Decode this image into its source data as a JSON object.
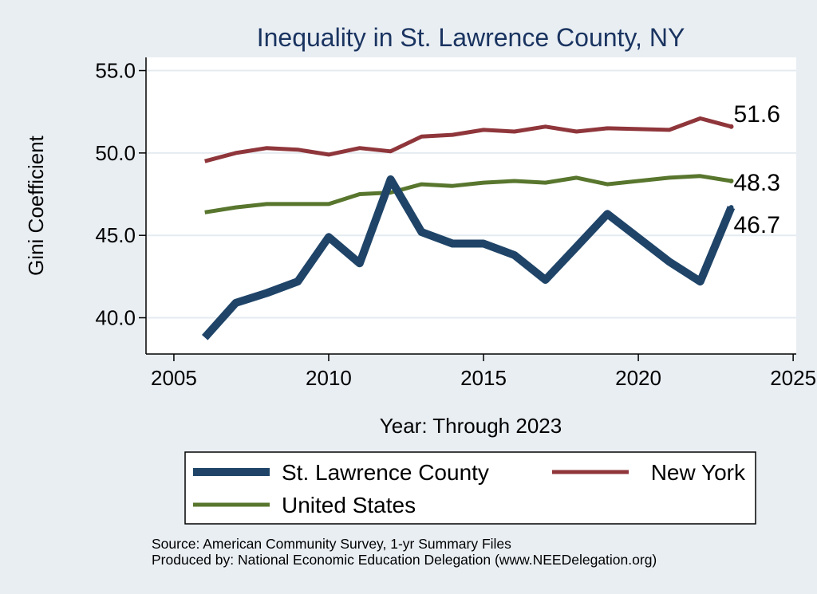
{
  "chart_data": {
    "type": "line",
    "title": "Inequality in St. Lawrence County, NY",
    "xlabel": "Year: Through 2023",
    "ylabel": "Gini Coefficient",
    "xlim": [
      2004.1,
      2025.1
    ],
    "ylim": [
      37.8,
      55.8
    ],
    "xticks": [
      2005,
      2010,
      2015,
      2020,
      2025
    ],
    "yticks": [
      40.0,
      45.0,
      50.0,
      55.0
    ],
    "xtick_labels": [
      "2005",
      "2010",
      "2015",
      "2020",
      "2025"
    ],
    "ytick_labels": [
      "40.0",
      "45.0",
      "50.0",
      "55.0"
    ],
    "grid": true,
    "legend_position": "bottom",
    "series": [
      {
        "name": "St. Lawrence County",
        "color": "#1f4468",
        "width": "thick",
        "end_label": "46.7",
        "points": [
          [
            2006,
            38.8
          ],
          [
            2007,
            40.9
          ],
          [
            2008,
            41.5
          ],
          [
            2009,
            42.2
          ],
          [
            2010,
            44.9
          ],
          [
            2011,
            43.3
          ],
          [
            2012,
            48.4
          ],
          [
            2013,
            45.2
          ],
          [
            2014,
            44.5
          ],
          [
            2015,
            44.5
          ],
          [
            2016,
            43.8
          ],
          [
            2017,
            42.3
          ],
          [
            2018,
            44.3
          ],
          [
            2019,
            46.3
          ],
          [
            2021,
            43.4
          ],
          [
            2022,
            42.2
          ],
          [
            2023,
            46.7
          ]
        ]
      },
      {
        "name": "New York",
        "color": "#8f363b",
        "width": "medium",
        "end_label": "51.6",
        "points": [
          [
            2006,
            49.5
          ],
          [
            2007,
            50.0
          ],
          [
            2008,
            50.3
          ],
          [
            2009,
            50.2
          ],
          [
            2010,
            49.9
          ],
          [
            2011,
            50.3
          ],
          [
            2012,
            50.1
          ],
          [
            2013,
            51.0
          ],
          [
            2014,
            51.1
          ],
          [
            2015,
            51.4
          ],
          [
            2016,
            51.3
          ],
          [
            2017,
            51.6
          ],
          [
            2018,
            51.3
          ],
          [
            2019,
            51.5
          ],
          [
            2021,
            51.4
          ],
          [
            2022,
            52.1
          ],
          [
            2023,
            51.6
          ]
        ]
      },
      {
        "name": "United States",
        "color": "#58762d",
        "width": "medium",
        "end_label": "48.3",
        "points": [
          [
            2006,
            46.4
          ],
          [
            2007,
            46.7
          ],
          [
            2008,
            46.9
          ],
          [
            2009,
            46.9
          ],
          [
            2010,
            46.9
          ],
          [
            2011,
            47.5
          ],
          [
            2012,
            47.6
          ],
          [
            2013,
            48.1
          ],
          [
            2014,
            48.0
          ],
          [
            2015,
            48.2
          ],
          [
            2016,
            48.3
          ],
          [
            2017,
            48.2
          ],
          [
            2018,
            48.5
          ],
          [
            2019,
            48.1
          ],
          [
            2021,
            48.5
          ],
          [
            2022,
            48.6
          ],
          [
            2023,
            48.3
          ]
        ]
      }
    ]
  },
  "notes": {
    "source": "Source: American Community Survey, 1-yr Summary Files",
    "produced": "Produced by: National Economic Education Delegation (www.NEEDelegation.org)"
  },
  "colors": {
    "plot_bg": "#ffffff",
    "page_bg": "#e9eef3",
    "grid": "#e4ebf0"
  }
}
